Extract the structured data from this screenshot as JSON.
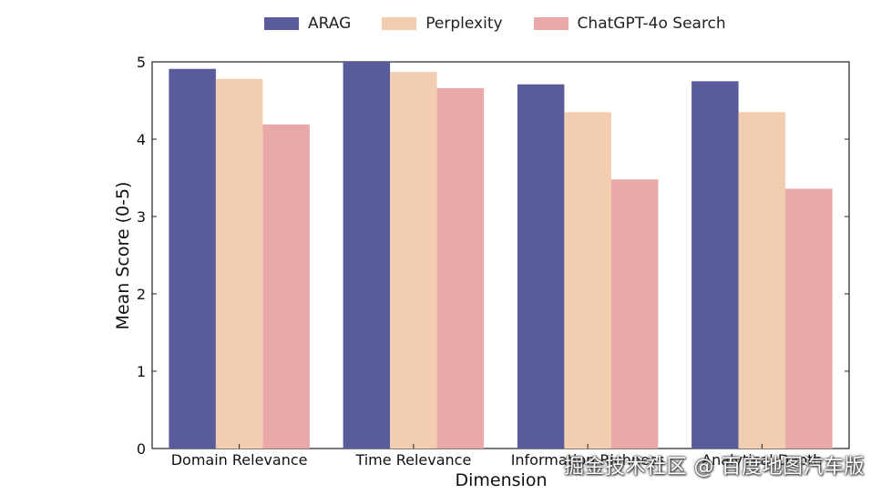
{
  "chart_data": {
    "type": "bar",
    "categories": [
      "Domain Relevance",
      "Time Relevance",
      "Information Richness",
      "Analytical Depth"
    ],
    "series": [
      {
        "name": "ARAG",
        "values": [
          4.91,
          5.0,
          4.71,
          4.75
        ],
        "color": "#5a5b9a"
      },
      {
        "name": "Perplexity",
        "values": [
          4.78,
          4.87,
          4.35,
          4.35
        ],
        "color": "#f2cdaf"
      },
      {
        "name": "ChatGPT-4o Search",
        "values": [
          4.19,
          4.66,
          3.48,
          3.36
        ],
        "color": "#eaa9a9"
      }
    ],
    "title": "",
    "xlabel": "Dimension",
    "ylabel": "Mean Score (0-5)",
    "ylim": [
      0,
      5
    ],
    "yticks": [
      0,
      1,
      2,
      3,
      4,
      5
    ],
    "grid": false,
    "legend_position": "top-center"
  },
  "watermark": "掘金技术社区 @ 百度地图汽车版"
}
